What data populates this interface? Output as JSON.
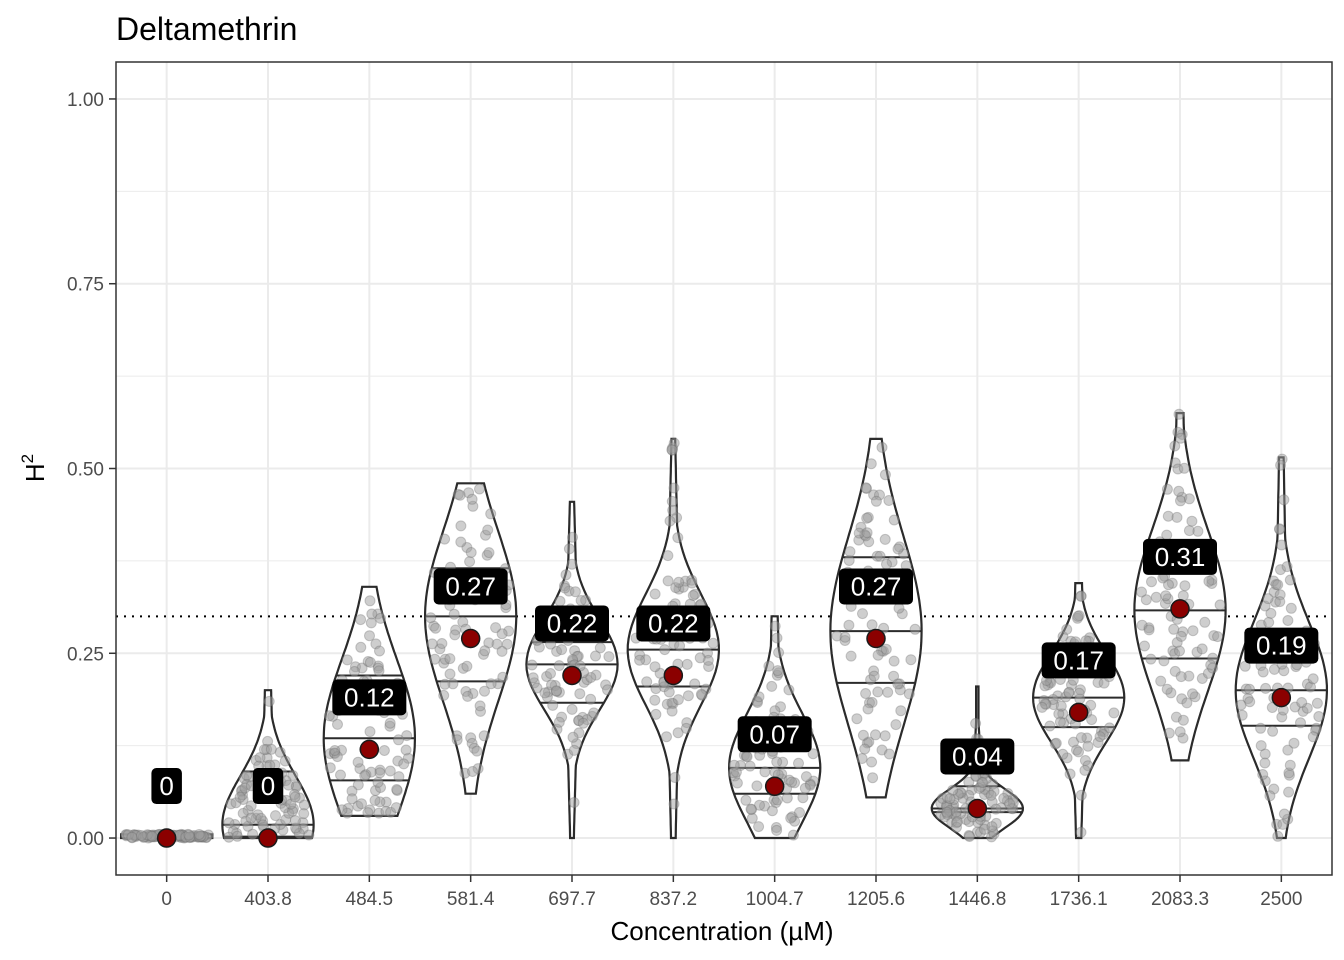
{
  "chart_data": {
    "type": "violin",
    "title": "Deltamethrin",
    "xlabel": "Concentration (µM)",
    "ylabel": "H",
    "ylabel_superscript": "2",
    "ylim": [
      -0.05,
      1.05
    ],
    "yticks": [
      "0.00",
      "0.25",
      "0.50",
      "0.75",
      "1.00"
    ],
    "ytick_values": [
      0,
      0.25,
      0.5,
      0.75,
      1.0
    ],
    "reference_line": 0.3,
    "grid": true,
    "categories": [
      "0",
      "403.8",
      "484.5",
      "581.4",
      "697.7",
      "837.2",
      "1004.7",
      "1205.6",
      "1446.8",
      "1736.1",
      "2083.3",
      "2500"
    ],
    "means": [
      0,
      0,
      0.12,
      0.27,
      0.22,
      0.22,
      0.07,
      0.27,
      0.04,
      0.17,
      0.31,
      0.19
    ],
    "mean_labels": [
      "0",
      "0",
      "0.12",
      "0.27",
      "0.22",
      "0.22",
      "0.07",
      "0.27",
      "0.04",
      "0.17",
      "0.31",
      "0.19"
    ],
    "mins": [
      0,
      0,
      0.03,
      0.06,
      0,
      0,
      0,
      0.055,
      0,
      0,
      0.105,
      0
    ],
    "maxs": [
      0.005,
      0.2,
      0.34,
      0.48,
      0.455,
      0.54,
      0.3,
      0.54,
      0.205,
      0.345,
      0.575,
      0.515
    ],
    "q1": [
      0,
      0.002,
      0.078,
      0.212,
      0.183,
      0.205,
      0.06,
      0.21,
      0.035,
      0.15,
      0.243,
      0.152
    ],
    "median": [
      0,
      0.018,
      0.135,
      0.3,
      0.235,
      0.255,
      0.095,
      0.28,
      0.04,
      0.19,
      0.308,
      0.2
    ],
    "q3": [
      0.001,
      0.09,
      0.22,
      0.365,
      0.265,
      0.305,
      0.158,
      0.38,
      0.07,
      0.23,
      0.39,
      0.275
    ],
    "colors": {
      "mean_point": "#8b0000",
      "jitter_point": "#9e9e9e",
      "violin_stroke": "#2b2b2b",
      "label_bg": "#000000",
      "label_text": "#ffffff",
      "grid": "#ebebeb"
    }
  }
}
